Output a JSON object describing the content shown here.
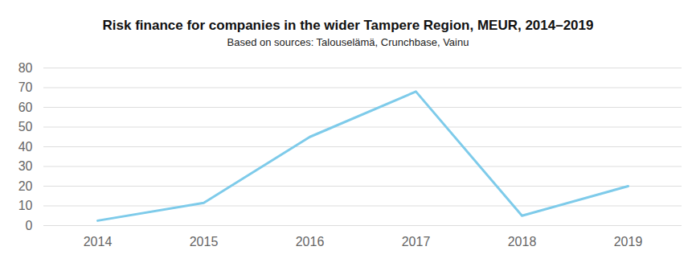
{
  "chart_data": {
    "type": "line",
    "title": "Risk finance for companies in the wider Tampere Region, MEUR, 2014–2019",
    "subtitle": "Based on sources: Talouselämä, Crunchbase, Vainu",
    "categories": [
      "2014",
      "2015",
      "2016",
      "2017",
      "2018",
      "2019"
    ],
    "values": [
      2.5,
      11.5,
      45,
      68,
      5,
      20
    ],
    "color": "#7ecbea",
    "ylim": [
      0,
      80
    ],
    "yticks": [
      0,
      10,
      20,
      30,
      40,
      50,
      60,
      70,
      80
    ],
    "grid": true
  }
}
